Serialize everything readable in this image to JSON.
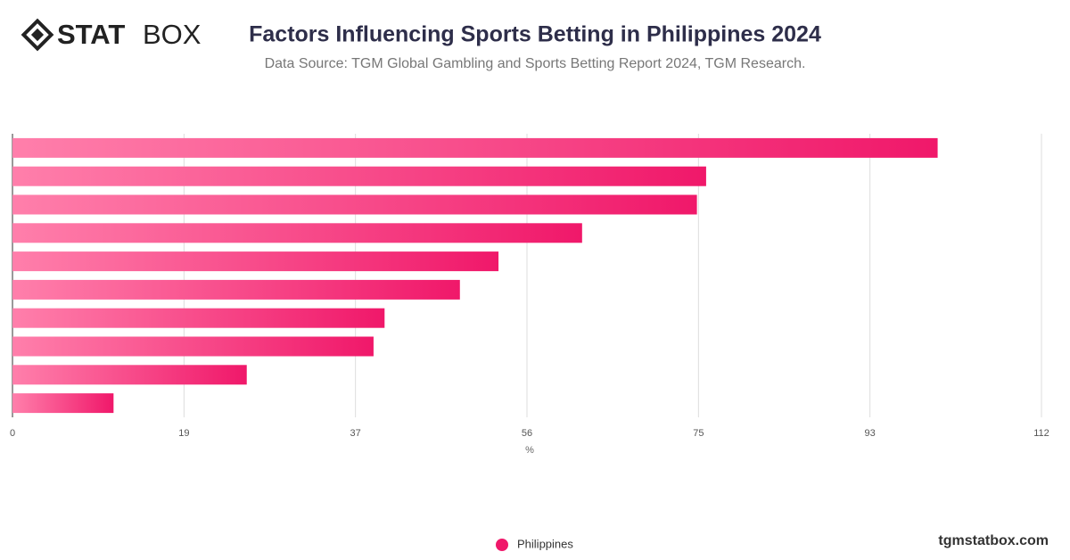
{
  "brand": {
    "logo_bold": "STAT",
    "logo_light": "BOX",
    "site": "tgmstatbox.com"
  },
  "chart_data": {
    "type": "hbar",
    "title": "Factors Influencing Sports Betting in Philippines 2024",
    "subtitle": "Data Source: TGM Global Gambling and Sports Betting Report 2024, TGM Research.",
    "x_label": "%",
    "categories": [
      null,
      null,
      null,
      null,
      null,
      null,
      null,
      null,
      null,
      null
    ],
    "series": [
      {
        "name": "Philippines",
        "color": "#f0186a",
        "values": [
          100.7,
          75.5,
          74.5,
          62.0,
          52.9,
          48.7,
          40.5,
          39.3,
          25.5,
          11.0
        ]
      }
    ],
    "xlim": [
      0,
      112
    ],
    "xticks": [
      0,
      {
        "value": 18.67,
        "label": "19"
      },
      {
        "value": 37.33,
        "label": "37"
      },
      56,
      {
        "value": 74.67,
        "label": "75"
      },
      {
        "value": 93.33,
        "label": "93"
      },
      112
    ],
    "grid": true,
    "legend": "bottom"
  }
}
